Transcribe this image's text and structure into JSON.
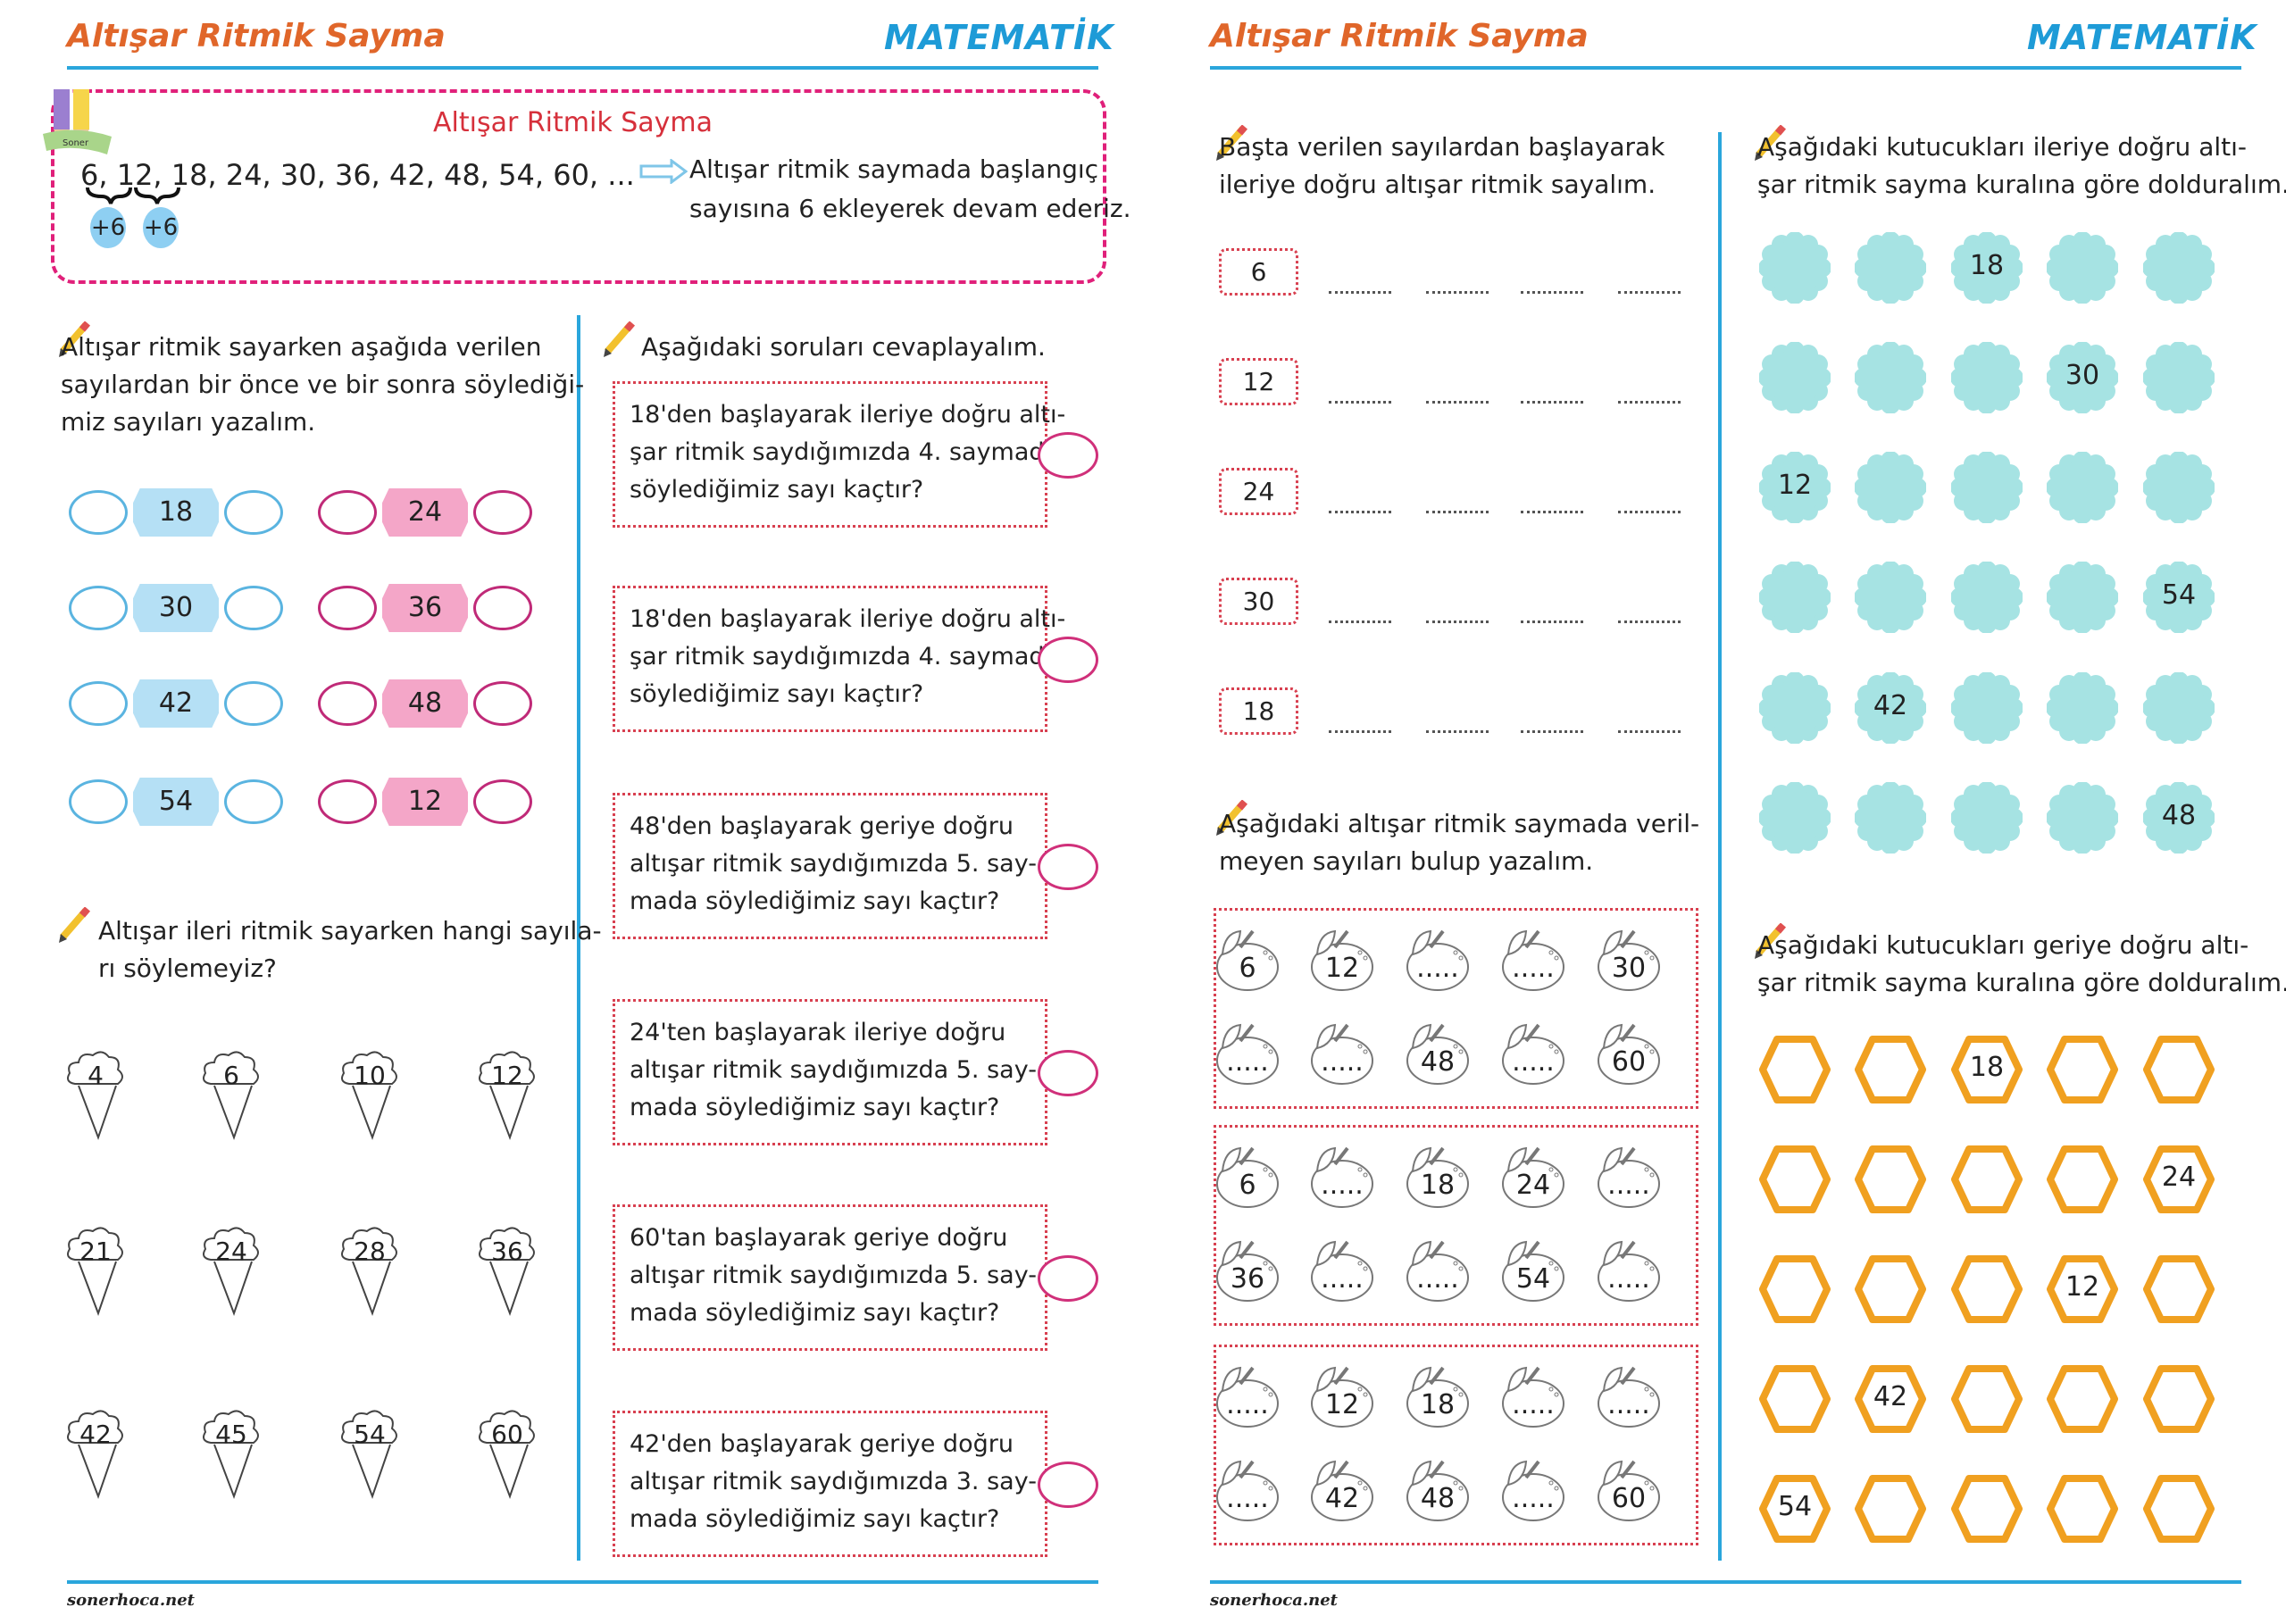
{
  "pages": [
    {
      "title": "Altışar Ritmik Sayma",
      "subject": "MATEMATİK",
      "footer": "sonerhoca.net"
    },
    {
      "title": "Altışar Ritmik Sayma",
      "subject": "MATEMATİK",
      "footer": "sonerhoca.net"
    }
  ],
  "logo_text": "Soner Hoca",
  "colors": {
    "title": "#E0662A",
    "subject": "#1E9BD7",
    "intro_border": "#E0207A",
    "dotted_border": "#D84050",
    "blob": "#A6E3E3",
    "hexagon": "#F0A020",
    "tag_blue": "#B5E0F5",
    "tag_pink": "#F4A6C8"
  },
  "intro": {
    "title": "Altışar Ritmik Sayma",
    "sequence": "6, 12, 18, 24, 30, 36, 42, 48, 54, 60, ...",
    "steps": [
      "+6",
      "+6"
    ],
    "explanation": [
      "Altışar ritmik saymada başlangıç",
      "sayısına 6 ekleyerek devam ederiz."
    ]
  },
  "before_after": {
    "instruction": [
      "Altışar ritmik sayarken aşağıda verilen",
      "sayılardan bir önce ve bir sonra söylediği-",
      "miz sayıları yazalım."
    ],
    "blue": [
      "18",
      "30",
      "42",
      "54"
    ],
    "pink": [
      "24",
      "36",
      "48",
      "12"
    ]
  },
  "ice_cream": {
    "instruction": [
      "Altışar ileri ritmik sayarken hangi sayıla-",
      "rı söylemeyiz?"
    ],
    "numbers": [
      "4",
      "6",
      "10",
      "12",
      "21",
      "24",
      "28",
      "36",
      "42",
      "45",
      "54",
      "60"
    ]
  },
  "questions": {
    "instruction": "Aşağıdaki soruları cevaplayalım.",
    "items": [
      [
        "18'den başlayarak ileriye doğru altı-",
        "şar ritmik saydığımızda 4. saymada",
        "söylediğimiz sayı kaçtır?"
      ],
      [
        "18'den başlayarak ileriye doğru altı-",
        "şar ritmik saydığımızda 4. saymada",
        "söylediğimiz sayı kaçtır?"
      ],
      [
        "48'den başlayarak geriye doğru",
        "altışar ritmik saydığımızda 5. say-",
        "mada söylediğimiz sayı kaçtır?"
      ],
      [
        "24'ten başlayarak ileriye doğru",
        "altışar ritmik saydığımızda 5. say-",
        "mada söylediğimiz sayı kaçtır?"
      ],
      [
        "60'tan başlayarak geriye doğru",
        "altışar ritmik saydığımızda 5. say-",
        "mada söylediğimiz sayı kaçtır?"
      ],
      [
        "42'den başlayarak geriye doğru",
        "altışar ritmik saydığımızda 3. say-",
        "mada söylediğimiz sayı kaçtır?"
      ]
    ]
  },
  "count_forward": {
    "instruction": [
      "Başta verilen sayılardan başlayarak",
      "ileriye doğru altışar ritmik sayalım."
    ],
    "starts": [
      "6",
      "12",
      "24",
      "30",
      "18"
    ]
  },
  "missing": {
    "instruction": [
      "Aşağıdaki altışar ritmik saymada veril-",
      "meyen sayıları bulup yazalım."
    ],
    "groups": [
      [
        "6",
        "12",
        ".....",
        ".....",
        "30",
        ".....",
        ".....",
        "48",
        ".....",
        "60"
      ],
      [
        "6",
        ".....",
        "18",
        "24",
        ".....",
        "36",
        ".....",
        ".....",
        "54",
        "....."
      ],
      [
        ".....",
        "12",
        "18",
        ".....",
        ".....",
        ".....",
        "42",
        "48",
        ".....",
        "60"
      ]
    ]
  },
  "blobs": {
    "instruction": [
      "Aşağıdaki kutucukları ileriye doğru altı-",
      "şar ritmik sayma kuralına göre dolduralım."
    ],
    "grid": [
      [
        "",
        "",
        "18",
        "",
        ""
      ],
      [
        "",
        "",
        "",
        "30",
        ""
      ],
      [
        "12",
        "",
        "",
        "",
        ""
      ],
      [
        "",
        "",
        "",
        "",
        "54"
      ],
      [
        "",
        "42",
        "",
        "",
        ""
      ],
      [
        "",
        "",
        "",
        "",
        "48"
      ]
    ]
  },
  "hexagons": {
    "instruction": [
      "Aşağıdaki kutucukları geriye doğru altı-",
      "şar ritmik sayma kuralına göre dolduralım."
    ],
    "grid": [
      [
        "",
        "",
        "18",
        "",
        ""
      ],
      [
        "",
        "",
        "",
        "",
        "24"
      ],
      [
        "",
        "",
        "",
        "12",
        ""
      ],
      [
        "",
        "42",
        "",
        "",
        ""
      ],
      [
        "54",
        "",
        "",
        "",
        ""
      ]
    ]
  }
}
